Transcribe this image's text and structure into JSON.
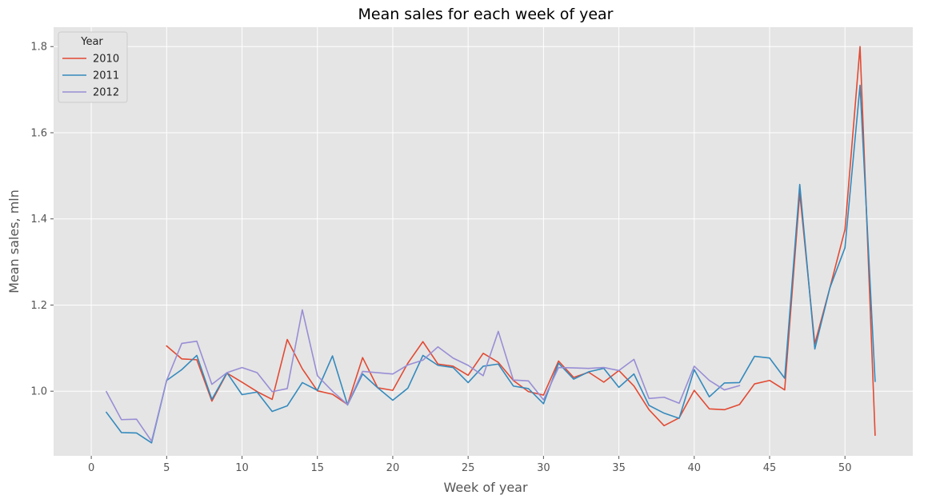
{
  "chart_data": {
    "type": "line",
    "title": "Mean sales for each week of year",
    "xlabel": "Week of year",
    "ylabel": "Mean sales, mln",
    "xlim": [
      -2.5,
      54.5
    ],
    "ylim": [
      0.85,
      1.845
    ],
    "xticks": [
      0,
      5,
      10,
      15,
      20,
      25,
      30,
      35,
      40,
      45,
      50
    ],
    "yticks": [
      1.0,
      1.2,
      1.4,
      1.6,
      1.8
    ],
    "ytick_labels": [
      "1.0",
      "1.2",
      "1.4",
      "1.6",
      "1.8"
    ],
    "grid": true,
    "legend": {
      "title": "Year",
      "position": "top-left"
    },
    "series": [
      {
        "name": "2010",
        "color": "#E24A33",
        "x": [
          5,
          6,
          7,
          8,
          9,
          10,
          11,
          12,
          13,
          14,
          15,
          16,
          17,
          18,
          19,
          20,
          21,
          22,
          23,
          24,
          25,
          26,
          27,
          28,
          29,
          30,
          31,
          32,
          33,
          34,
          35,
          36,
          37,
          38,
          39,
          40,
          41,
          42,
          43,
          44,
          45,
          46,
          47,
          48,
          49,
          50,
          51,
          52
        ],
        "y": [
          1.105,
          1.075,
          1.073,
          0.977,
          1.042,
          1.021,
          0.999,
          0.981,
          1.12,
          1.052,
          1.001,
          0.993,
          0.969,
          1.078,
          1.008,
          1.002,
          1.065,
          1.115,
          1.063,
          1.058,
          1.037,
          1.088,
          1.067,
          1.025,
          0.999,
          0.991,
          1.07,
          1.032,
          1.044,
          1.021,
          1.048,
          1.012,
          0.957,
          0.92,
          0.938,
          1.002,
          0.959,
          0.957,
          0.969,
          1.017,
          1.025,
          1.003,
          1.46,
          1.11,
          1.24,
          1.375,
          1.8,
          0.898
        ]
      },
      {
        "name": "2011",
        "color": "#348ABD",
        "x": [
          1,
          2,
          3,
          4,
          5,
          6,
          7,
          8,
          9,
          10,
          11,
          12,
          13,
          14,
          15,
          16,
          17,
          18,
          19,
          20,
          21,
          22,
          23,
          24,
          25,
          26,
          27,
          28,
          29,
          30,
          31,
          32,
          33,
          34,
          35,
          36,
          37,
          38,
          39,
          40,
          41,
          42,
          43,
          44,
          45,
          46,
          47,
          48,
          49,
          50,
          51,
          52
        ],
        "y": [
          0.951,
          0.904,
          0.903,
          0.88,
          1.025,
          1.05,
          1.083,
          0.981,
          1.043,
          0.992,
          0.998,
          0.953,
          0.966,
          1.02,
          1.002,
          1.082,
          0.968,
          1.04,
          1.008,
          0.979,
          1.007,
          1.083,
          1.06,
          1.055,
          1.02,
          1.058,
          1.063,
          1.012,
          1.006,
          0.971,
          1.065,
          1.028,
          1.045,
          1.053,
          1.009,
          1.04,
          0.967,
          0.949,
          0.937,
          1.05,
          0.987,
          1.019,
          1.02,
          1.081,
          1.077,
          1.03,
          1.48,
          1.098,
          1.24,
          1.333,
          1.71,
          1.023
        ]
      },
      {
        "name": "2012",
        "color": "#988ED5",
        "x": [
          1,
          2,
          3,
          4,
          5,
          6,
          7,
          8,
          9,
          10,
          11,
          12,
          13,
          14,
          15,
          16,
          17,
          18,
          19,
          20,
          21,
          22,
          23,
          24,
          25,
          26,
          27,
          28,
          29,
          30,
          31,
          32,
          33,
          34,
          35,
          36,
          37,
          38,
          39,
          40,
          41,
          42,
          43
        ],
        "y": [
          0.999,
          0.934,
          0.935,
          0.884,
          1.025,
          1.111,
          1.116,
          1.016,
          1.043,
          1.055,
          1.043,
          0.999,
          1.006,
          1.189,
          1.036,
          1.0,
          0.969,
          1.046,
          1.043,
          1.04,
          1.061,
          1.072,
          1.103,
          1.077,
          1.06,
          1.036,
          1.139,
          1.026,
          1.024,
          0.98,
          1.055,
          1.054,
          1.053,
          1.055,
          1.048,
          1.074,
          0.983,
          0.986,
          0.972,
          1.058,
          1.025,
          1.003,
          1.013
        ]
      }
    ]
  }
}
